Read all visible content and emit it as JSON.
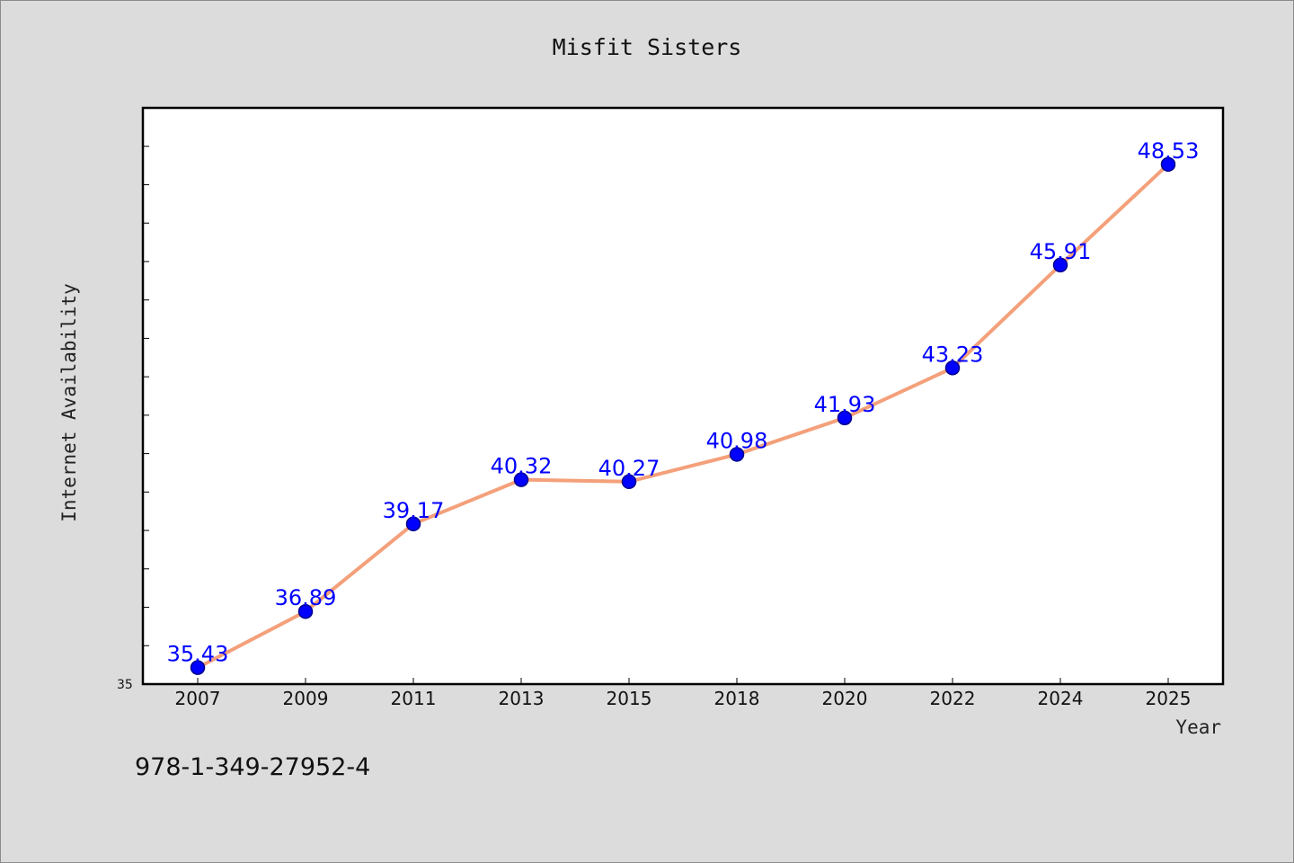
{
  "chart_data": {
    "type": "line",
    "title": "Misfit Sisters",
    "xlabel": "Year",
    "ylabel": "Internet Availability",
    "categories": [
      "2007",
      "2009",
      "2011",
      "2013",
      "2015",
      "2018",
      "2020",
      "2022",
      "2024",
      "2025"
    ],
    "series": [
      {
        "values": [
          35.43,
          36.89,
          39.17,
          40.32,
          40.27,
          40.98,
          41.93,
          43.23,
          45.91,
          48.53
        ],
        "labels": [
          "35.43",
          "36.89",
          "39.17",
          "40.32",
          "40.27",
          "40.98",
          "41.93",
          "43.23",
          "45.91",
          "48.53"
        ]
      }
    ],
    "ylim": [
      35,
      50
    ],
    "ytick_label": "35",
    "grid": false,
    "legend": "none"
  },
  "footnote": "978-1-349-27952-4",
  "colors": {
    "line": "#f4a07a",
    "marker": "#0000ff",
    "marker_edge": "#00008b",
    "data_label": "#0000ff",
    "background": "#dcdcdc",
    "plot_area": "#ffffff"
  }
}
